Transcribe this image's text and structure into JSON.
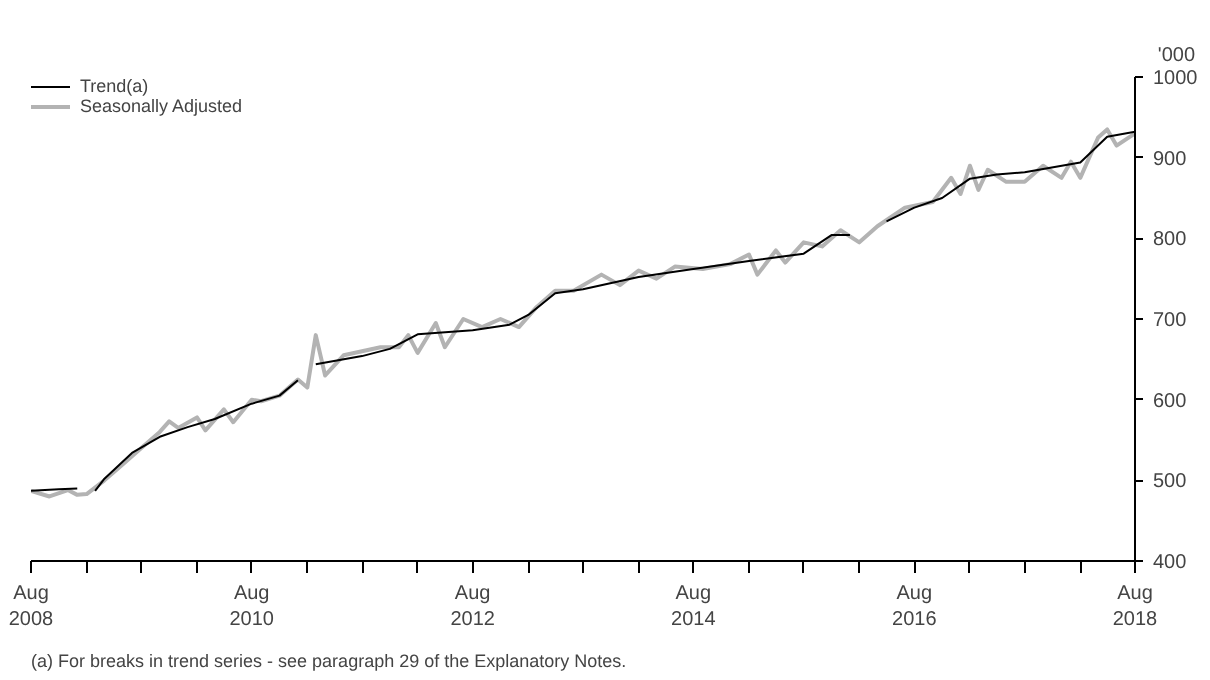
{
  "chart_data": {
    "type": "line",
    "ylabel": "'000",
    "annotations": [
      "(a) For breaks in trend series - see paragraph 29 of the Explanatory Notes."
    ],
    "legend": "top left",
    "grid": false,
    "line_style": "solid",
    "marker": "none",
    "xlim": [
      "2008-08",
      "2018-08"
    ],
    "ylim": [
      400,
      1000
    ],
    "yticks": [
      400,
      500,
      600,
      700,
      800,
      900,
      1000
    ],
    "xticks": [
      {
        "value": "2008-08",
        "label": "Aug\n2008"
      },
      {
        "value": "2009-02",
        "label": null
      },
      {
        "value": "2009-08",
        "label": null
      },
      {
        "value": "2010-02",
        "label": null
      },
      {
        "value": "2010-08",
        "label": "Aug\n2010"
      },
      {
        "value": "2011-02",
        "label": null
      },
      {
        "value": "2011-08",
        "label": null
      },
      {
        "value": "2012-02",
        "label": null
      },
      {
        "value": "2012-08",
        "label": "Aug\n2012"
      },
      {
        "value": "2013-02",
        "label": null
      },
      {
        "value": "2013-08",
        "label": null
      },
      {
        "value": "2014-02",
        "label": null
      },
      {
        "value": "2014-08",
        "label": "Aug\n2014"
      },
      {
        "value": "2015-02",
        "label": null
      },
      {
        "value": "2015-08",
        "label": null
      },
      {
        "value": "2016-02",
        "label": null
      },
      {
        "value": "2016-08",
        "label": "Aug\n2016"
      },
      {
        "value": "2017-02",
        "label": null
      },
      {
        "value": "2017-08",
        "label": null
      },
      {
        "value": "2018-02",
        "label": null
      },
      {
        "value": "2018-08",
        "label": "Aug\n2018"
      }
    ],
    "series": [
      {
        "name": "Trend(a)",
        "color": "#000000",
        "x": [
          "2008-08",
          "2008-11",
          "2009-01",
          "2009-02",
          "2009-03",
          "2009-04",
          "2009-07",
          "2009-10",
          "2010-01",
          "2010-04",
          "2010-08",
          "2010-11",
          "2011-01",
          "2011-02",
          "2011-03",
          "2011-08",
          "2011-11",
          "2012-02",
          "2012-08",
          "2012-12",
          "2013-02",
          "2013-05",
          "2013-08",
          "2014-02",
          "2014-08",
          "2015-02",
          "2015-08",
          "2015-11",
          "2016-01",
          "2016-02",
          "2016-05",
          "2016-08",
          "2016-11",
          "2017-02",
          "2017-05",
          "2017-08",
          "2018-02",
          "2018-05",
          "2018-08"
        ],
        "values": [
          487,
          489,
          490,
          null,
          487,
          502,
          534,
          554,
          566,
          576,
          595,
          605,
          624,
          null,
          644,
          654,
          663,
          681,
          686,
          693,
          705,
          732,
          737,
          752,
          762,
          772,
          781,
          804,
          804,
          null,
          821,
          838,
          850,
          874,
          879,
          882,
          894,
          926,
          932
        ]
      },
      {
        "name": "Seasonally Adjusted",
        "color": "#b3b3b3",
        "x": [
          "2008-08",
          "2008-10",
          "2008-12",
          "2009-01",
          "2009-02",
          "2009-04",
          "2009-06",
          "2009-08",
          "2009-10",
          "2009-11",
          "2009-12",
          "2010-02",
          "2010-03",
          "2010-05",
          "2010-06",
          "2010-08",
          "2010-09",
          "2010-11",
          "2011-01",
          "2011-02",
          "2011-03",
          "2011-04",
          "2011-06",
          "2011-08",
          "2011-10",
          "2011-12",
          "2012-01",
          "2012-02",
          "2012-04",
          "2012-05",
          "2012-07",
          "2012-09",
          "2012-11",
          "2013-01",
          "2013-03",
          "2013-05",
          "2013-07",
          "2013-10",
          "2013-12",
          "2014-02",
          "2014-04",
          "2014-06",
          "2014-09",
          "2014-12",
          "2015-02",
          "2015-03",
          "2015-05",
          "2015-06",
          "2015-08",
          "2015-10",
          "2015-12",
          "2016-02",
          "2016-04",
          "2016-07",
          "2016-10",
          "2016-12",
          "2017-01",
          "2017-02",
          "2017-03",
          "2017-04",
          "2017-06",
          "2017-08",
          "2017-10",
          "2017-12",
          "2018-01",
          "2018-02",
          "2018-04",
          "2018-05",
          "2018-06",
          "2018-08"
        ],
        "values": [
          487,
          480,
          488,
          482,
          483,
          500,
          520,
          540,
          560,
          573,
          565,
          578,
          562,
          588,
          572,
          600,
          598,
          605,
          625,
          615,
          680,
          630,
          655,
          660,
          665,
          665,
          680,
          658,
          695,
          665,
          700,
          690,
          700,
          690,
          715,
          735,
          735,
          755,
          742,
          760,
          750,
          765,
          762,
          768,
          780,
          755,
          785,
          770,
          795,
          790,
          810,
          795,
          815,
          838,
          845,
          875,
          855,
          890,
          860,
          885,
          870,
          870,
          890,
          875,
          895,
          875,
          925,
          935,
          915,
          930
        ]
      }
    ]
  }
}
